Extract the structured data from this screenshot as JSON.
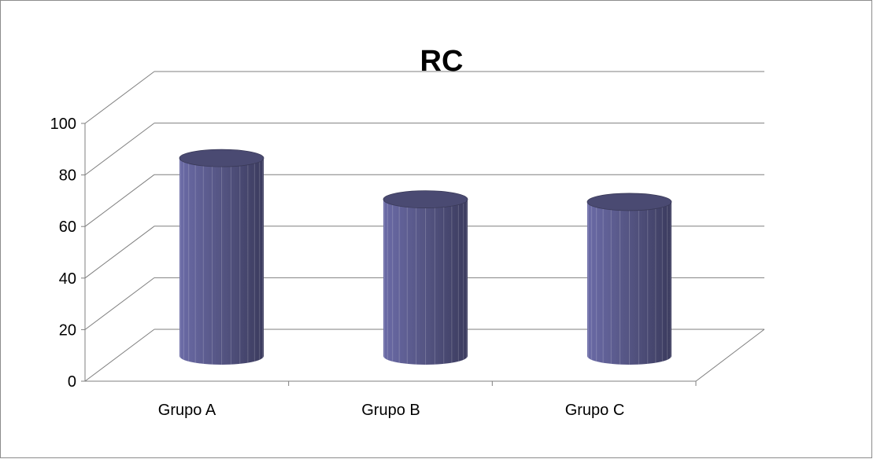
{
  "chart_data": {
    "type": "bar",
    "style": "3d-cylinder",
    "title": "RC",
    "categories": [
      "Grupo A",
      "Grupo B",
      "Grupo C"
    ],
    "series": [
      {
        "values": [
          78,
          62,
          61
        ]
      }
    ],
    "yticks": [
      "0",
      "20",
      "40",
      "60",
      "80",
      "100"
    ],
    "ylim": [
      0,
      100
    ],
    "grid": true,
    "legend": "none",
    "colors": {
      "bar_light": "#6a6aa6",
      "bar_mid": "#52527f",
      "bar_dark": "#3b3b5e",
      "bar_top": "#4a4a72",
      "gridline": "#7f7f7f",
      "axis": "#7f7f7f"
    }
  }
}
